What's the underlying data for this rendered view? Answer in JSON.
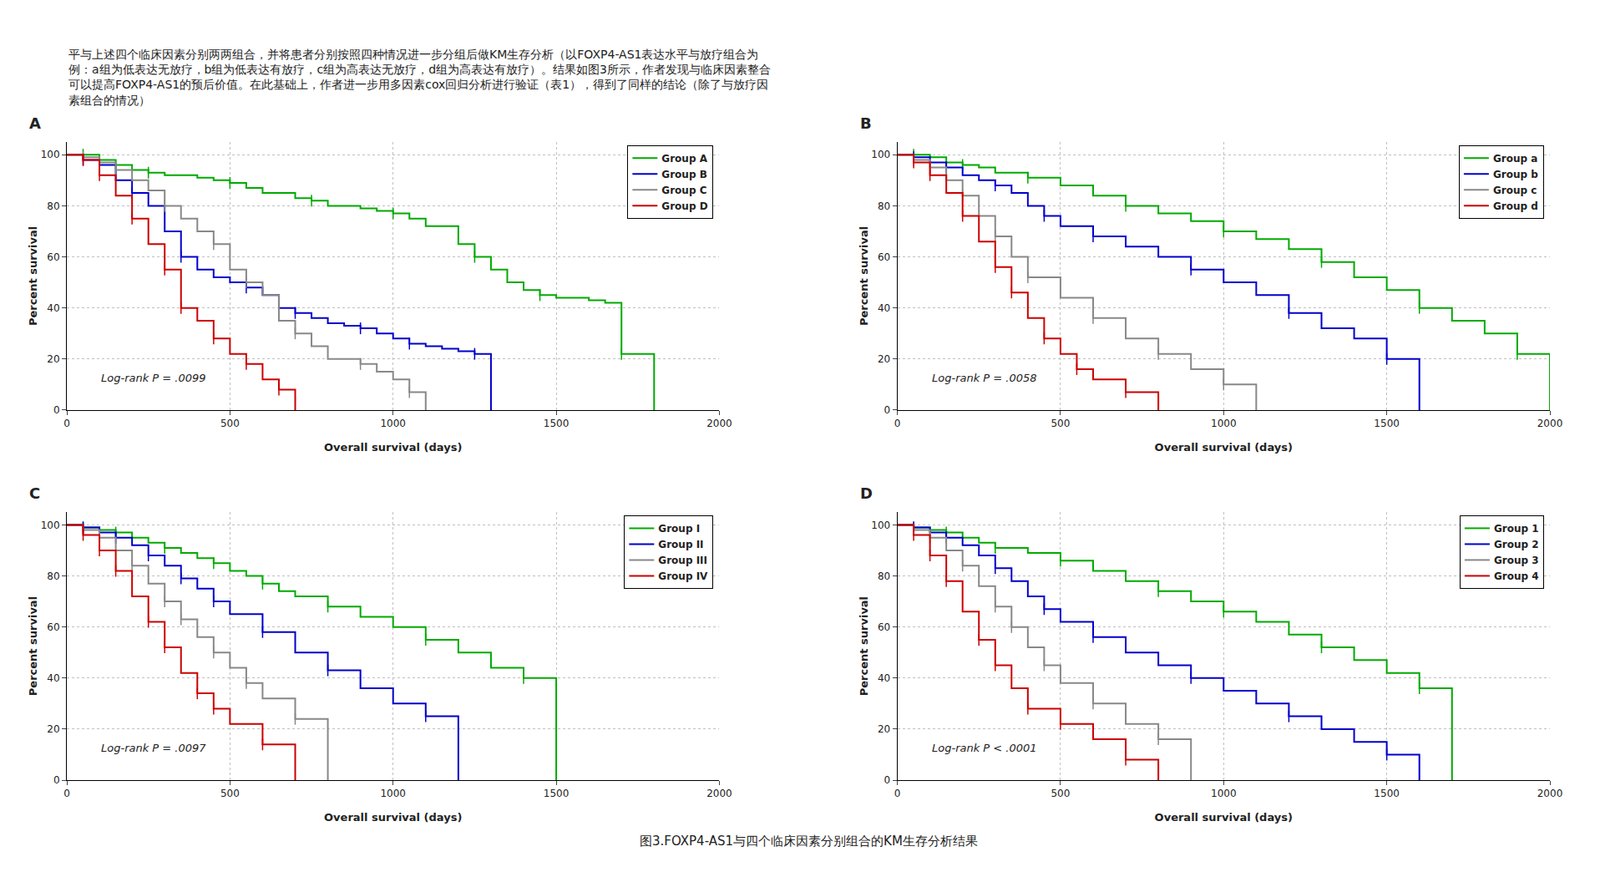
{
  "title": "图3.FOXP4-AS1与四个临床因素分别组合的KM生存分析结果",
  "subtitle": "平与上述四个临床因素分别两两组合，并将患者分别按照四种情况进一步分组后做KM生存分析（以FOXP4-AS1表达水平与放疗组合为\n例：a组为低表达无放疗，b组为低表达有放疗，c组为高表达无放疗，d组为高表达有放疗）。结果如图3所示，作者发现与临床因素整合\n可以提高FOXP4-AS1的预后价值。在此基础上，作者进一步用多因素cox回归分析进行验证（表1），得到了同样的结论（除了与放疗因\n素组合的情况）",
  "chart_data": [
    {
      "type": "line",
      "title": "A",
      "annotations": [
        "Log-rank P = .0099"
      ],
      "xlabel": "Overall survival (days)",
      "ylabel": "Percent survival",
      "xlim": [
        0,
        2000
      ],
      "ylim": [
        0,
        105
      ],
      "xticks": [
        0,
        500,
        1000,
        1500,
        2000
      ],
      "yticks": [
        0,
        20,
        40,
        60,
        80,
        100
      ],
      "grid": true,
      "legend": "upper right",
      "line_style": "step",
      "marker": "|",
      "series": [
        {
          "name": "Group A",
          "color": "#00aa00",
          "x": [
            0,
            50,
            100,
            150,
            200,
            250,
            300,
            400,
            450,
            500,
            550,
            600,
            700,
            750,
            800,
            900,
            950,
            1000,
            1050,
            1100,
            1200,
            1250,
            1300,
            1350,
            1400,
            1450,
            1500,
            1600,
            1650,
            1700,
            1800
          ],
          "values": [
            100,
            100,
            98,
            96,
            94,
            93,
            92,
            91,
            90,
            89,
            87,
            85,
            83,
            82,
            80,
            79,
            78,
            77,
            75,
            72,
            65,
            60,
            55,
            50,
            47,
            45,
            44,
            43,
            42,
            22,
            0
          ]
        },
        {
          "name": "Group B",
          "color": "#0000cc",
          "x": [
            0,
            50,
            100,
            150,
            200,
            250,
            300,
            350,
            400,
            450,
            500,
            550,
            600,
            650,
            700,
            750,
            800,
            850,
            900,
            950,
            1000,
            1050,
            1100,
            1150,
            1200,
            1250,
            1300
          ],
          "values": [
            100,
            98,
            96,
            90,
            85,
            80,
            70,
            60,
            55,
            52,
            50,
            48,
            45,
            40,
            38,
            36,
            34,
            33,
            32,
            30,
            28,
            26,
            25,
            24,
            23,
            22,
            0
          ]
        },
        {
          "name": "Group C",
          "color": "#888888",
          "x": [
            0,
            50,
            100,
            150,
            200,
            250,
            300,
            350,
            400,
            450,
            500,
            550,
            600,
            650,
            700,
            750,
            800,
            900,
            950,
            1000,
            1050,
            1100
          ],
          "values": [
            100,
            99,
            97,
            94,
            90,
            86,
            80,
            75,
            70,
            65,
            55,
            50,
            45,
            35,
            30,
            25,
            20,
            18,
            15,
            12,
            7,
            0
          ]
        },
        {
          "name": "Group D",
          "color": "#cc0000",
          "x": [
            0,
            50,
            100,
            150,
            200,
            250,
            300,
            350,
            400,
            450,
            500,
            550,
            600,
            650,
            700
          ],
          "values": [
            100,
            98,
            92,
            84,
            75,
            65,
            55,
            40,
            35,
            28,
            22,
            18,
            12,
            8,
            0
          ]
        }
      ]
    },
    {
      "type": "line",
      "title": "B",
      "annotations": [
        "Log-rank P = .0058"
      ],
      "xlabel": "Overall survival (days)",
      "ylabel": "Percent survival",
      "xlim": [
        0,
        2000
      ],
      "ylim": [
        0,
        105
      ],
      "xticks": [
        0,
        500,
        1000,
        1500,
        2000
      ],
      "yticks": [
        0,
        20,
        40,
        60,
        80,
        100
      ],
      "grid": true,
      "legend": "upper right",
      "line_style": "step",
      "marker": "|",
      "series": [
        {
          "name": "Group a",
          "color": "#00aa00",
          "x": [
            0,
            50,
            100,
            150,
            200,
            250,
            300,
            400,
            500,
            600,
            700,
            800,
            900,
            1000,
            1100,
            1200,
            1300,
            1400,
            1500,
            1600,
            1700,
            1800,
            1900,
            2000
          ],
          "values": [
            100,
            100,
            99,
            97,
            96,
            95,
            93,
            91,
            88,
            84,
            80,
            77,
            74,
            70,
            67,
            63,
            58,
            52,
            47,
            40,
            35,
            30,
            22,
            0
          ]
        },
        {
          "name": "Group b",
          "color": "#0000cc",
          "x": [
            0,
            50,
            100,
            150,
            200,
            250,
            300,
            350,
            400,
            450,
            500,
            600,
            700,
            800,
            900,
            1000,
            1100,
            1200,
            1300,
            1400,
            1500,
            1600
          ],
          "values": [
            100,
            99,
            97,
            95,
            92,
            90,
            88,
            85,
            80,
            76,
            72,
            68,
            64,
            60,
            55,
            50,
            45,
            38,
            32,
            28,
            20,
            0
          ]
        },
        {
          "name": "Group c",
          "color": "#888888",
          "x": [
            0,
            50,
            100,
            150,
            200,
            250,
            300,
            350,
            400,
            500,
            600,
            700,
            800,
            900,
            1000,
            1100
          ],
          "values": [
            100,
            98,
            95,
            90,
            84,
            76,
            68,
            60,
            52,
            44,
            36,
            28,
            22,
            16,
            10,
            0
          ]
        },
        {
          "name": "Group d",
          "color": "#cc0000",
          "x": [
            0,
            50,
            100,
            150,
            200,
            250,
            300,
            350,
            400,
            450,
            500,
            550,
            600,
            700,
            800
          ],
          "values": [
            100,
            97,
            92,
            85,
            76,
            66,
            56,
            46,
            36,
            28,
            22,
            16,
            12,
            7,
            0
          ]
        }
      ]
    },
    {
      "type": "line",
      "title": "C",
      "annotations": [
        "Log-rank P = .0097"
      ],
      "xlabel": "Overall survival (days)",
      "ylabel": "Percent survival",
      "xlim": [
        0,
        2000
      ],
      "ylim": [
        0,
        105
      ],
      "xticks": [
        0,
        500,
        1000,
        1500,
        2000
      ],
      "yticks": [
        0,
        20,
        40,
        60,
        80,
        100
      ],
      "grid": true,
      "legend": "upper right",
      "line_style": "step",
      "marker": "|",
      "series": [
        {
          "name": "Group I",
          "color": "#00aa00",
          "x": [
            0,
            50,
            100,
            150,
            200,
            250,
            300,
            350,
            400,
            450,
            500,
            550,
            600,
            650,
            700,
            800,
            900,
            1000,
            1100,
            1200,
            1300,
            1400,
            1500
          ],
          "values": [
            100,
            99,
            98,
            97,
            95,
            93,
            91,
            89,
            87,
            85,
            82,
            80,
            77,
            74,
            72,
            68,
            64,
            60,
            55,
            50,
            44,
            40,
            0
          ]
        },
        {
          "name": "Group II",
          "color": "#0000cc",
          "x": [
            0,
            50,
            100,
            150,
            200,
            250,
            300,
            350,
            400,
            450,
            500,
            600,
            700,
            800,
            900,
            1000,
            1100,
            1200
          ],
          "values": [
            100,
            99,
            97,
            95,
            92,
            88,
            84,
            79,
            75,
            70,
            65,
            58,
            50,
            43,
            36,
            30,
            25,
            0
          ]
        },
        {
          "name": "Group III",
          "color": "#888888",
          "x": [
            0,
            50,
            100,
            150,
            200,
            250,
            300,
            350,
            400,
            450,
            500,
            550,
            600,
            700,
            800
          ],
          "values": [
            100,
            98,
            95,
            90,
            84,
            77,
            70,
            63,
            56,
            50,
            44,
            38,
            32,
            24,
            0
          ]
        },
        {
          "name": "Group IV",
          "color": "#cc0000",
          "x": [
            0,
            50,
            100,
            150,
            200,
            250,
            300,
            350,
            400,
            450,
            500,
            600,
            700
          ],
          "values": [
            100,
            96,
            90,
            82,
            72,
            62,
            52,
            42,
            34,
            28,
            22,
            14,
            0
          ]
        }
      ]
    },
    {
      "type": "line",
      "title": "D",
      "annotations": [
        "Log-rank P < .0001"
      ],
      "xlabel": "Overall survival (days)",
      "ylabel": "Percent survival",
      "xlim": [
        0,
        2000
      ],
      "ylim": [
        0,
        105
      ],
      "xticks": [
        0,
        500,
        1000,
        1500,
        2000
      ],
      "yticks": [
        0,
        20,
        40,
        60,
        80,
        100
      ],
      "grid": true,
      "legend": "upper right",
      "line_style": "step",
      "marker": "|",
      "series": [
        {
          "name": "Group 1",
          "color": "#00aa00",
          "x": [
            0,
            50,
            100,
            150,
            200,
            250,
            300,
            400,
            500,
            600,
            700,
            800,
            900,
            1000,
            1100,
            1200,
            1300,
            1400,
            1500,
            1600,
            1700
          ],
          "values": [
            100,
            99,
            98,
            97,
            95,
            93,
            91,
            89,
            86,
            82,
            78,
            74,
            70,
            66,
            62,
            57,
            52,
            47,
            42,
            36,
            0
          ]
        },
        {
          "name": "Group 2",
          "color": "#0000cc",
          "x": [
            0,
            50,
            100,
            150,
            200,
            250,
            300,
            350,
            400,
            450,
            500,
            600,
            700,
            800,
            900,
            1000,
            1100,
            1200,
            1300,
            1400,
            1500,
            1600
          ],
          "values": [
            100,
            99,
            97,
            95,
            92,
            88,
            83,
            78,
            72,
            67,
            62,
            56,
            50,
            45,
            40,
            35,
            30,
            25,
            20,
            15,
            10,
            0
          ]
        },
        {
          "name": "Group 3",
          "color": "#888888",
          "x": [
            0,
            50,
            100,
            150,
            200,
            250,
            300,
            350,
            400,
            450,
            500,
            600,
            700,
            800,
            900
          ],
          "values": [
            100,
            98,
            95,
            90,
            84,
            76,
            68,
            60,
            52,
            45,
            38,
            30,
            22,
            16,
            0
          ]
        },
        {
          "name": "Group 4",
          "color": "#cc0000",
          "x": [
            0,
            50,
            100,
            150,
            200,
            250,
            300,
            350,
            400,
            500,
            600,
            700,
            800
          ],
          "values": [
            100,
            96,
            88,
            78,
            66,
            55,
            45,
            36,
            28,
            22,
            16,
            8,
            0
          ]
        }
      ]
    }
  ]
}
